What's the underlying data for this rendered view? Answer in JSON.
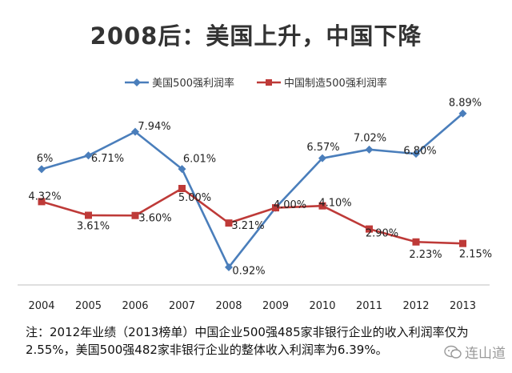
{
  "title": "2008后：美国上升，中国下降",
  "note": "注：2012年业绩（2013榜单）中国企业500强485家非银行企业的收入利润率仅为2.55%，美国500强482家非银行企业的整体收入利润率为6.39%。",
  "watermark": "连山道",
  "chart_data": {
    "type": "line",
    "title": "2008后：美国上升，中国下降",
    "categories": [
      "2004",
      "2005",
      "2006",
      "2007",
      "2008",
      "2009",
      "2010",
      "2011",
      "2012",
      "2013"
    ],
    "series": [
      {
        "name": "美国500强利润率",
        "color": "#4a7ebb",
        "marker": "diamond",
        "values": [
          6.0,
          6.71,
          7.94,
          6.01,
          0.92,
          4.0,
          6.57,
          7.02,
          6.8,
          8.89
        ],
        "labels": [
          "6%",
          "6.71%",
          "7.94%",
          "6.01%",
          "0.92%",
          "",
          "6.57%",
          "7.02%",
          "6.80%",
          "8.89%"
        ]
      },
      {
        "name": "中国制造500强利润率",
        "color": "#be3a38",
        "marker": "square",
        "values": [
          4.32,
          3.61,
          3.6,
          5.0,
          3.21,
          4.0,
          4.1,
          2.9,
          2.23,
          2.15
        ],
        "labels": [
          "4.32%",
          "3.61%",
          "3.60%",
          "5.00%",
          "3.21%",
          "4.00%",
          "4.10%",
          "2.90%",
          "2.23%",
          "2.15%"
        ]
      }
    ],
    "ylim": [
      0,
      10
    ],
    "grid": false,
    "legend": "top-center"
  }
}
